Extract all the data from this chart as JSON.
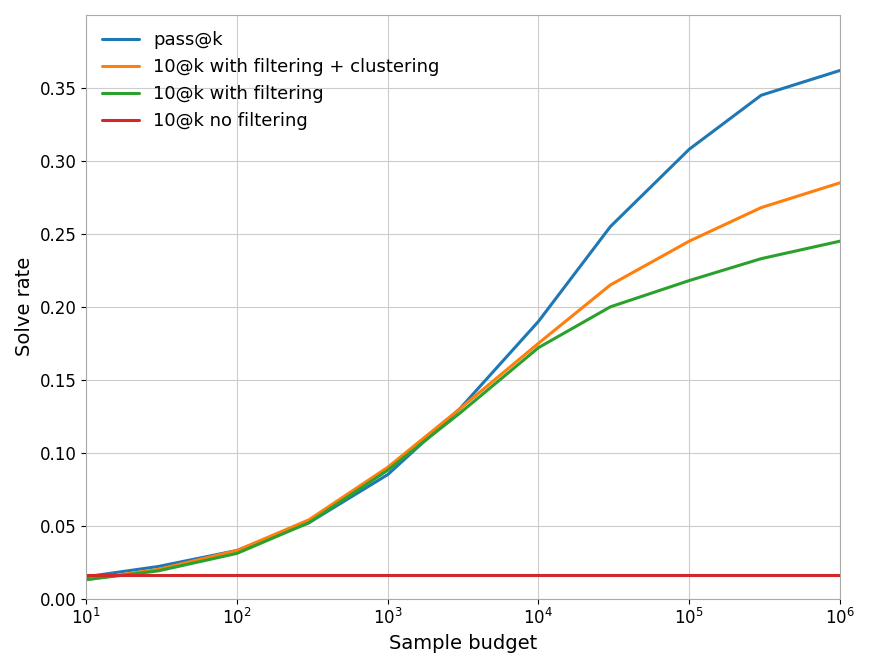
{
  "xlabel": "Sample budget",
  "ylabel": "Solve rate",
  "xlim": [
    10,
    1000000
  ],
  "ylim": [
    0.0,
    0.4
  ],
  "background_color": "#ffffff",
  "grid_color": "#cccccc",
  "lines": [
    {
      "label": "pass@k",
      "color": "#1f77b4",
      "x": [
        10,
        30,
        100,
        300,
        1000,
        3000,
        10000,
        30000,
        100000,
        300000,
        1000000
      ],
      "y": [
        0.015,
        0.022,
        0.033,
        0.052,
        0.085,
        0.13,
        0.19,
        0.255,
        0.308,
        0.345,
        0.362
      ]
    },
    {
      "label": "10@k with filtering + clustering",
      "color": "#ff7f0e",
      "x": [
        10,
        30,
        100,
        300,
        1000,
        3000,
        10000,
        30000,
        100000,
        300000,
        1000000
      ],
      "y": [
        0.013,
        0.02,
        0.033,
        0.054,
        0.09,
        0.13,
        0.175,
        0.215,
        0.245,
        0.268,
        0.285
      ]
    },
    {
      "label": "10@k with filtering",
      "color": "#2ca02c",
      "x": [
        10,
        30,
        100,
        300,
        1000,
        3000,
        10000,
        30000,
        100000,
        300000,
        1000000
      ],
      "y": [
        0.013,
        0.019,
        0.031,
        0.052,
        0.088,
        0.127,
        0.172,
        0.2,
        0.218,
        0.233,
        0.245
      ]
    },
    {
      "label": "10@k no filtering",
      "color": "#d62728",
      "x": [
        10,
        1000000
      ],
      "y": [
        0.016,
        0.016
      ]
    }
  ],
  "yticks": [
    0.0,
    0.05,
    0.1,
    0.15,
    0.2,
    0.25,
    0.3,
    0.35
  ],
  "xticks": [
    10,
    100,
    1000,
    10000,
    100000,
    1000000
  ],
  "xtick_labels": [
    "$10^1$",
    "$10^2$",
    "$10^3$",
    "$10^4$",
    "$10^5$",
    "$10^6$"
  ],
  "line_width": 2.2,
  "legend_fontsize": 13,
  "axis_fontsize": 14,
  "tick_fontsize": 12
}
